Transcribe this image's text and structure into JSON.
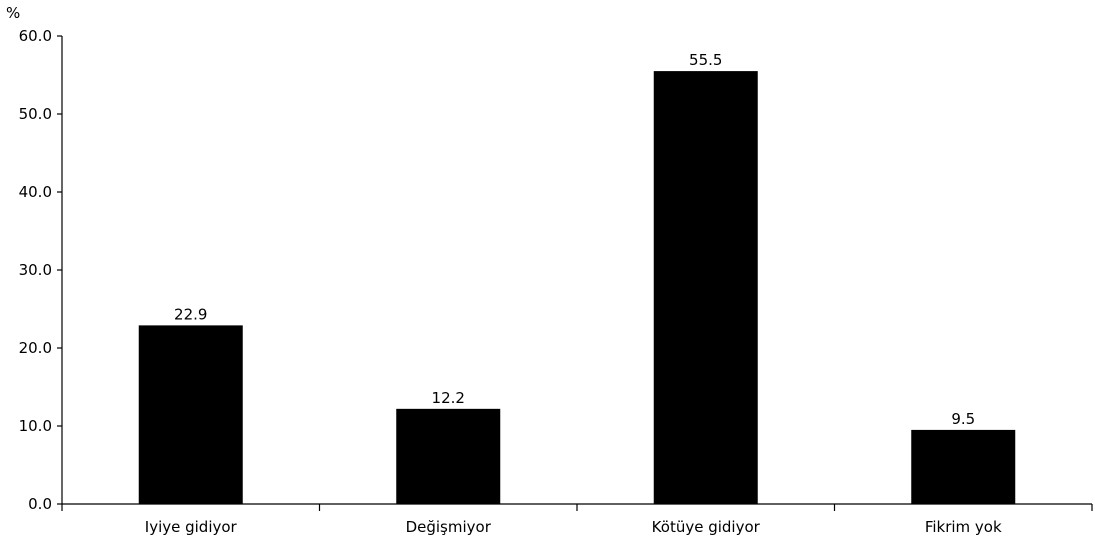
{
  "chart_data": {
    "type": "bar",
    "ylabel": "%",
    "categories": [
      "Iyiye gidiyor",
      "Değişmiyor",
      "Kötüye gidiyor",
      "Fikrim yok"
    ],
    "values": [
      22.9,
      12.2,
      55.5,
      9.5
    ],
    "value_labels": [
      "22.9",
      "12.2",
      "55.5",
      "9.5"
    ],
    "ylim": [
      0,
      60
    ],
    "yticks": [
      0,
      10,
      20,
      30,
      40,
      50,
      60
    ],
    "ytick_labels": [
      "0.0",
      "10.0",
      "20.0",
      "30.0",
      "40.0",
      "50.0",
      "60.0"
    ],
    "bar_color": "#000000",
    "grid": false,
    "legend": "none"
  }
}
